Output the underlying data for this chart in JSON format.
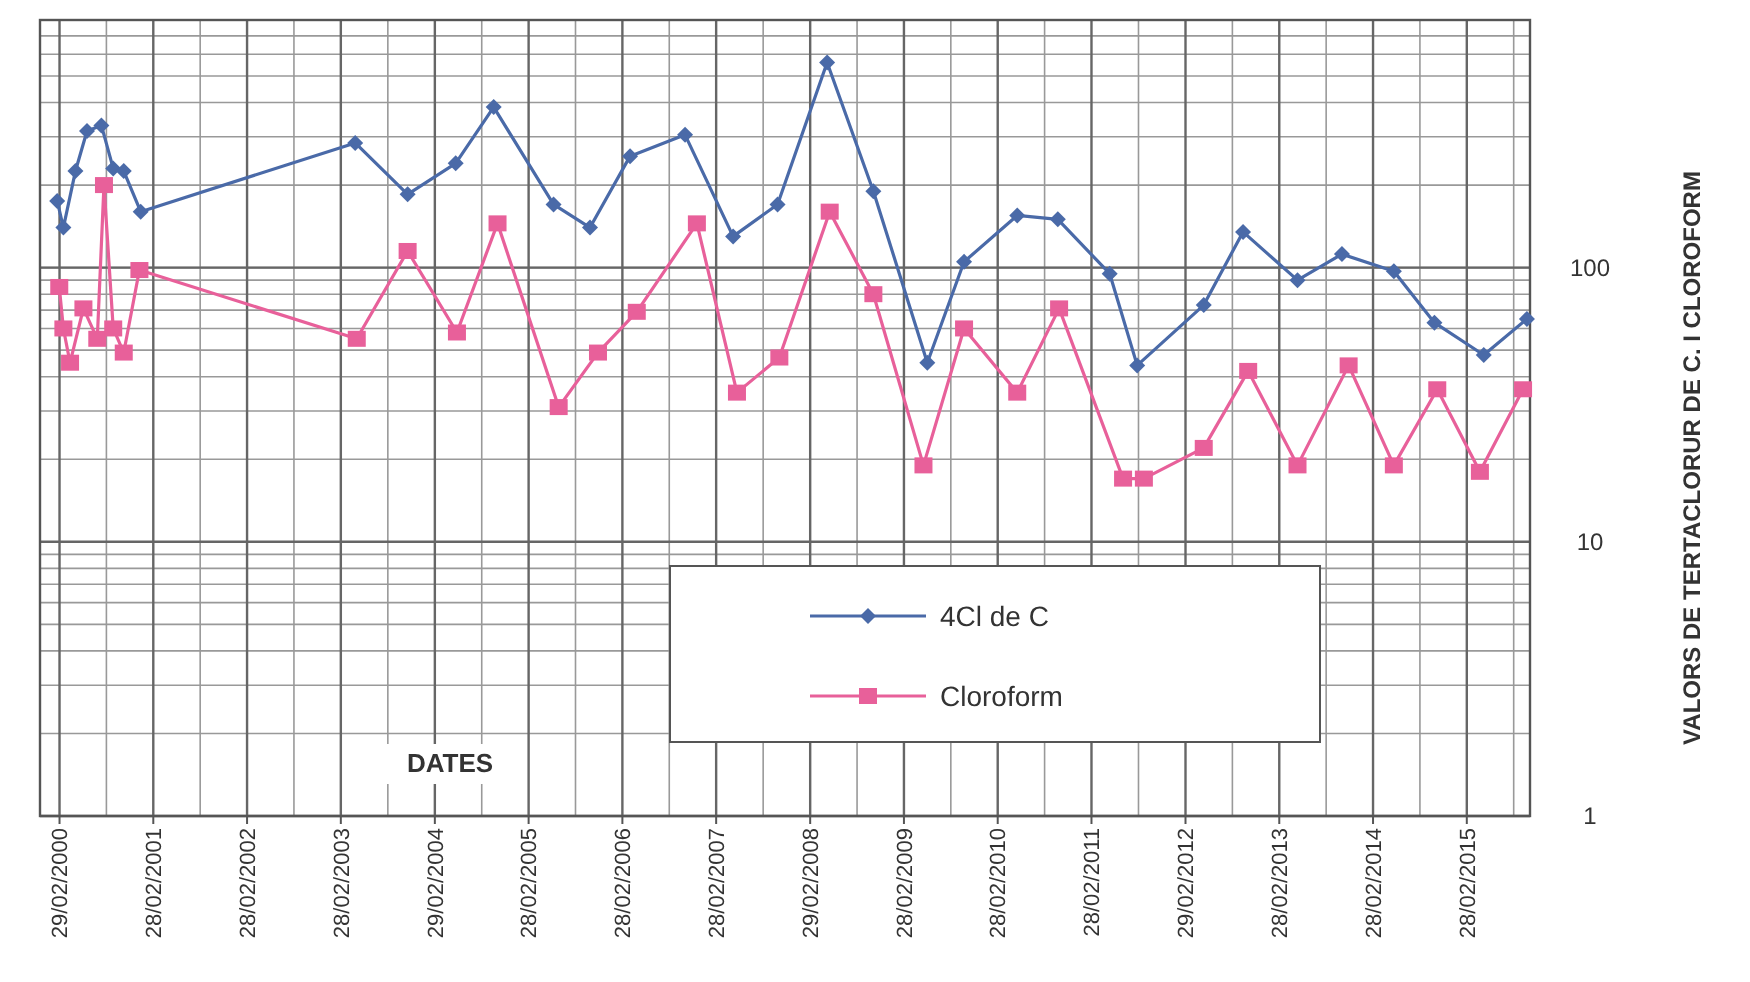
{
  "chart_data": {
    "type": "line",
    "xlabel": "DATES",
    "ylabel": "VALORS  DE TERTACLORUR DE C. I  CLOROFORM",
    "log": "y",
    "grid": true,
    "legend": "bottom",
    "line_style": "solid",
    "xlim": [
      "1999-12-15",
      "2015-11-01"
    ],
    "ylim": [
      1,
      800
    ],
    "yticks": [
      1,
      10,
      100
    ],
    "xticks": [
      {
        "value": "2000-02-29",
        "label": "29/02/2000"
      },
      {
        "value": "2001-02-28",
        "label": "28/02/2001"
      },
      {
        "value": "2002-02-28",
        "label": "28/02/2002"
      },
      {
        "value": "2003-02-28",
        "label": "28/02/2003"
      },
      {
        "value": "2004-02-29",
        "label": "29/02/2004"
      },
      {
        "value": "2005-02-28",
        "label": "28/02/2005"
      },
      {
        "value": "2006-02-28",
        "label": "28/02/2006"
      },
      {
        "value": "2007-02-28",
        "label": "28/02/2007"
      },
      {
        "value": "2008-02-29",
        "label": "29/02/2008"
      },
      {
        "value": "2009-02-28",
        "label": "28/02/2009"
      },
      {
        "value": "2010-02-28",
        "label": "28/02/2010"
      },
      {
        "value": "2011-02-28",
        "label": "28/02/2011"
      },
      {
        "value": "2012-02-29",
        "label": "29/02/2012"
      },
      {
        "value": "2013-02-28",
        "label": "28/02/2013"
      },
      {
        "value": "2014-02-28",
        "label": "28/02/2014"
      },
      {
        "value": "2015-02-28",
        "label": "28/02/2015"
      }
    ],
    "series": [
      {
        "name": "4Cl de C",
        "color": "#4a6aa8",
        "marker": "diamond",
        "x": [
          "2000-02-20",
          "2000-03-15",
          "2000-05-01",
          "2000-06-15",
          "2000-08-10",
          "2000-09-25",
          "2000-11-05",
          "2001-01-10",
          "2003-04-25",
          "2003-11-15",
          "2004-05-20",
          "2004-10-15",
          "2005-06-05",
          "2005-10-25",
          "2006-03-30",
          "2006-10-30",
          "2007-05-05",
          "2007-10-25",
          "2008-05-05",
          "2008-11-01",
          "2009-05-30",
          "2009-10-20",
          "2010-05-15",
          "2010-10-20",
          "2011-05-10",
          "2011-08-25",
          "2012-05-10",
          "2012-10-10",
          "2013-05-10",
          "2013-10-30",
          "2014-05-20",
          "2014-10-25",
          "2015-05-05",
          "2015-10-20"
        ],
        "values": [
          175,
          140,
          225,
          315,
          330,
          230,
          225,
          160,
          285,
          185,
          240,
          385,
          170,
          140,
          255,
          305,
          130,
          170,
          560,
          190,
          45,
          105,
          155,
          150,
          95,
          44,
          73,
          135,
          90,
          112,
          97,
          63,
          48,
          65
        ]
      },
      {
        "name": "Cloroform",
        "color": "#e8609a",
        "marker": "square",
        "x": [
          "2000-02-28",
          "2000-03-15",
          "2000-04-10",
          "2000-06-01",
          "2000-07-25",
          "2000-08-20",
          "2000-09-25",
          "2000-11-05",
          "2001-01-05",
          "2003-05-01",
          "2003-11-15",
          "2004-05-25",
          "2004-10-30",
          "2005-06-25",
          "2005-11-25",
          "2006-04-25",
          "2006-12-15",
          "2007-05-20",
          "2007-11-01",
          "2008-05-15",
          "2008-11-01",
          "2009-05-15",
          "2009-10-20",
          "2010-05-15",
          "2010-10-25",
          "2011-07-01",
          "2011-09-20",
          "2012-05-10",
          "2012-10-30",
          "2013-05-10",
          "2013-11-25",
          "2014-05-20",
          "2014-11-05",
          "2015-04-20",
          "2015-10-05"
        ],
        "values": [
          85,
          60,
          45,
          71,
          55,
          200,
          60,
          49,
          98,
          55,
          115,
          58,
          145,
          31,
          49,
          69,
          145,
          35,
          47,
          160,
          80,
          19,
          60,
          35,
          71,
          17,
          17,
          22,
          42,
          19,
          44,
          19,
          36,
          18,
          36
        ]
      }
    ]
  }
}
